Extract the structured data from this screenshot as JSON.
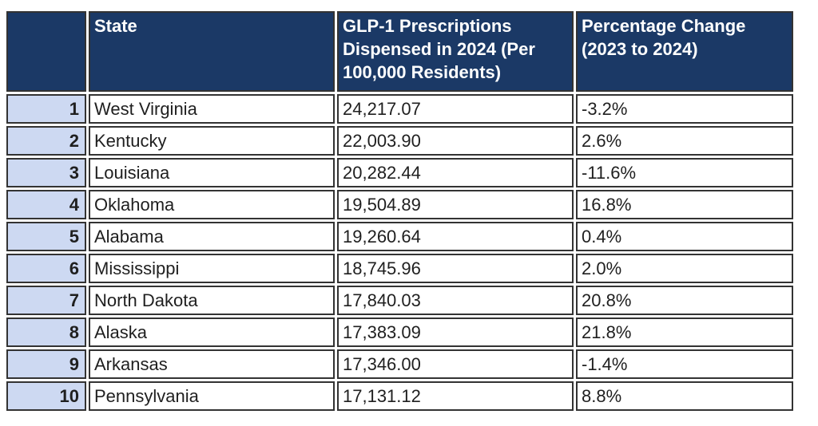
{
  "table": {
    "title_semantic": "GLP-1 prescriptions by state ranking table",
    "headers": {
      "rank": "",
      "state": "State",
      "value": "GLP-1 Prescriptions Dispensed in 2024 (Per 100,000 Residents)",
      "change": "Percentage Change (2023 to 2024)"
    },
    "rows": [
      {
        "rank": "1",
        "state": "West Virginia",
        "value": "24,217.07",
        "change": "-3.2%"
      },
      {
        "rank": "2",
        "state": "Kentucky",
        "value": "22,003.90",
        "change": "2.6%"
      },
      {
        "rank": "3",
        "state": "Louisiana",
        "value": "20,282.44",
        "change": "-11.6%"
      },
      {
        "rank": "4",
        "state": "Oklahoma",
        "value": "19,504.89",
        "change": "16.8%"
      },
      {
        "rank": "5",
        "state": "Alabama",
        "value": "19,260.64",
        "change": "0.4%"
      },
      {
        "rank": "6",
        "state": "Mississippi",
        "value": "18,745.96",
        "change": "2.0%"
      },
      {
        "rank": "7",
        "state": "North Dakota",
        "value": "17,840.03",
        "change": "20.8%"
      },
      {
        "rank": "8",
        "state": "Alaska",
        "value": "17,383.09",
        "change": "21.8%"
      },
      {
        "rank": "9",
        "state": "Arkansas",
        "value": "17,346.00",
        "change": "-1.4%"
      },
      {
        "rank": "10",
        "state": "Pennsylvania",
        "value": "17,131.12",
        "change": "8.8%"
      }
    ]
  },
  "colors": {
    "header_bg": "#1b3966",
    "header_text": "#ffffff",
    "rank_cell_bg": "#cdd9f2",
    "cell_border": "#333333",
    "body_text": "#1f1f1f",
    "page_bg": "#ffffff"
  }
}
